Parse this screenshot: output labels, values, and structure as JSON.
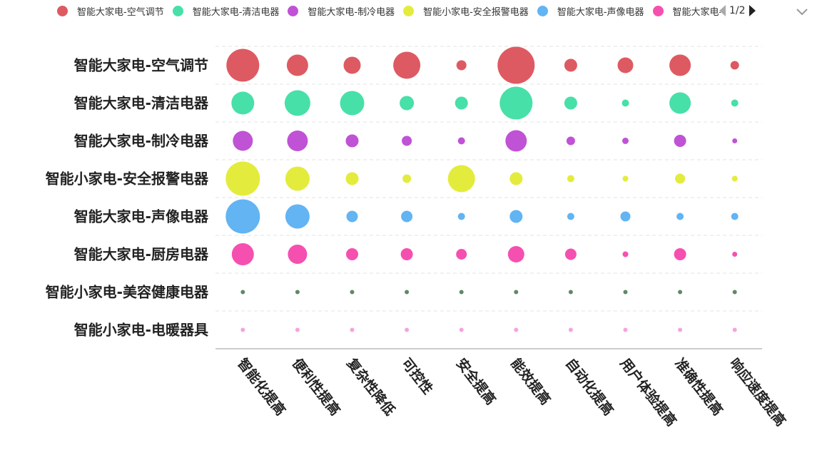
{
  "legend": {
    "items": [
      {
        "label": "智能大家电-空气调节",
        "color": "#dd5a62"
      },
      {
        "label": "智能大家电-清洁电器",
        "color": "#47e0a8"
      },
      {
        "label": "智能大家电-制冷电器",
        "color": "#c052d6"
      },
      {
        "label": "智能小家电-安全报警电器",
        "color": "#e3ec3c"
      },
      {
        "label": "智能大家电-声像电器",
        "color": "#62b4f3"
      },
      {
        "label": "智能大家电-厨房电器",
        "color": "#f550b0"
      }
    ],
    "pager_text": "1/2"
  },
  "chart_data": {
    "type": "scatter",
    "x_categories": [
      "智能化提高",
      "便利性提高",
      "复杂性降低",
      "可控性",
      "安全提高",
      "能效提高",
      "自动化提高",
      "用户体验提高",
      "准确性提高",
      "响应速度提高"
    ],
    "y_categories": [
      "智能大家电-空气调节",
      "智能大家电-清洁电器",
      "智能大家电-制冷电器",
      "智能小家电-安全报警电器",
      "智能大家电-声像电器",
      "智能大家电-厨房电器",
      "智能小家电-美容健康电器",
      "智能小家电-电暖器具"
    ],
    "series": [
      {
        "name": "智能大家电-空气调节",
        "color": "#dd5a62",
        "values": [
          46,
          30,
          24,
          38,
          14,
          52,
          18,
          22,
          30,
          12
        ]
      },
      {
        "name": "智能大家电-清洁电器",
        "color": "#47e0a8",
        "values": [
          32,
          36,
          34,
          20,
          18,
          46,
          18,
          10,
          30,
          10
        ]
      },
      {
        "name": "智能大家电-制冷电器",
        "color": "#c052d6",
        "values": [
          28,
          29,
          18,
          14,
          10,
          30,
          12,
          9,
          17,
          7
        ]
      },
      {
        "name": "智能小家电-安全报警电器",
        "color": "#e3ec3c",
        "values": [
          48,
          34,
          18,
          12,
          38,
          18,
          10,
          8,
          14,
          8
        ]
      },
      {
        "name": "智能大家电-声像电器",
        "color": "#62b4f3",
        "values": [
          48,
          34,
          16,
          16,
          10,
          18,
          10,
          14,
          10,
          10
        ]
      },
      {
        "name": "智能大家电-厨房电器",
        "color": "#f550b0",
        "values": [
          31,
          27,
          17,
          17,
          15,
          23,
          16,
          8,
          17,
          7
        ]
      },
      {
        "name": "智能小家电-美容健康电器",
        "color": "#5f8a63",
        "values": [
          6,
          6,
          6,
          6,
          6,
          6,
          6,
          6,
          6,
          6
        ]
      },
      {
        "name": "智能小家电-电暖器具",
        "color": "#f4a4dc",
        "values": [
          6,
          6,
          6,
          6,
          6,
          6,
          6,
          6,
          6,
          6
        ]
      }
    ],
    "grid": "horizontal-dashed",
    "legend_position": "top"
  }
}
